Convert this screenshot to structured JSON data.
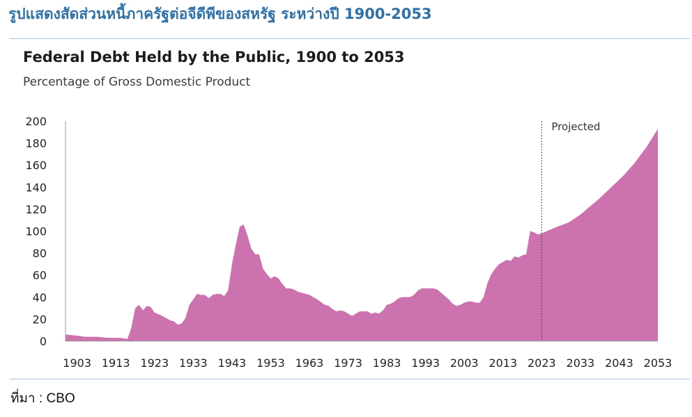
{
  "heading": "รูปแสดงสัดส่วนหนี้ภาครัฐต่อจีดีพีของสหรัฐ ระหว่างปี 1900-2053",
  "source": "ที่มา : CBO",
  "colors": {
    "heading": "#2e70a8",
    "area_fill": "#cc72af",
    "frame_lines": "#a9bfdc"
  },
  "chart_data": {
    "type": "area",
    "title": "Federal Debt Held by the Public, 1900 to 2053",
    "subtitle": "Percentage of Gross Domestic Product",
    "xlabel": "",
    "ylabel": "",
    "xlim": [
      1900,
      2053
    ],
    "ylim": [
      0,
      200
    ],
    "grid": false,
    "legend": "none",
    "x_ticks": [
      1903,
      1913,
      1923,
      1933,
      1943,
      1953,
      1963,
      1973,
      1983,
      1993,
      2003,
      2013,
      2023,
      2033,
      2043,
      2053
    ],
    "y_ticks": [
      0,
      20,
      40,
      60,
      80,
      100,
      120,
      140,
      160,
      180,
      200
    ],
    "annotations": [
      {
        "text": "Projected",
        "x": 2023
      }
    ],
    "series": [
      {
        "values": [
          [
            1900,
            6
          ],
          [
            1903,
            5
          ],
          [
            1905,
            4
          ],
          [
            1908,
            4
          ],
          [
            1911,
            3
          ],
          [
            1914,
            3
          ],
          [
            1916,
            2
          ],
          [
            1917,
            12
          ],
          [
            1918,
            30
          ],
          [
            1919,
            33
          ],
          [
            1920,
            28
          ],
          [
            1921,
            32
          ],
          [
            1922,
            31
          ],
          [
            1923,
            26
          ],
          [
            1925,
            23
          ],
          [
            1927,
            19
          ],
          [
            1928,
            18
          ],
          [
            1929,
            15
          ],
          [
            1930,
            16
          ],
          [
            1931,
            21
          ],
          [
            1932,
            33
          ],
          [
            1933,
            38
          ],
          [
            1934,
            43
          ],
          [
            1935,
            42
          ],
          [
            1936,
            42
          ],
          [
            1937,
            39
          ],
          [
            1938,
            42
          ],
          [
            1939,
            43
          ],
          [
            1940,
            43
          ],
          [
            1941,
            41
          ],
          [
            1942,
            46
          ],
          [
            1943,
            70
          ],
          [
            1944,
            88
          ],
          [
            1945,
            104
          ],
          [
            1946,
            106
          ],
          [
            1947,
            96
          ],
          [
            1948,
            84
          ],
          [
            1949,
            79
          ],
          [
            1950,
            79
          ],
          [
            1951,
            66
          ],
          [
            1952,
            61
          ],
          [
            1953,
            57
          ],
          [
            1954,
            59
          ],
          [
            1955,
            57
          ],
          [
            1956,
            52
          ],
          [
            1957,
            48
          ],
          [
            1958,
            48
          ],
          [
            1959,
            47
          ],
          [
            1960,
            45
          ],
          [
            1962,
            43
          ],
          [
            1963,
            42
          ],
          [
            1965,
            38
          ],
          [
            1967,
            33
          ],
          [
            1968,
            32
          ],
          [
            1969,
            29
          ],
          [
            1970,
            27
          ],
          [
            1971,
            28
          ],
          [
            1972,
            27
          ],
          [
            1973,
            25
          ],
          [
            1974,
            23
          ],
          [
            1975,
            25
          ],
          [
            1976,
            27
          ],
          [
            1977,
            27
          ],
          [
            1978,
            27
          ],
          [
            1979,
            25
          ],
          [
            1980,
            26
          ],
          [
            1981,
            25
          ],
          [
            1982,
            28
          ],
          [
            1983,
            33
          ],
          [
            1984,
            34
          ],
          [
            1985,
            36
          ],
          [
            1986,
            39
          ],
          [
            1987,
            40
          ],
          [
            1988,
            40
          ],
          [
            1989,
            40
          ],
          [
            1990,
            42
          ],
          [
            1991,
            46
          ],
          [
            1992,
            48
          ],
          [
            1993,
            48
          ],
          [
            1994,
            48
          ],
          [
            1995,
            48
          ],
          [
            1996,
            47
          ],
          [
            1997,
            44
          ],
          [
            1998,
            41
          ],
          [
            1999,
            38
          ],
          [
            2000,
            34
          ],
          [
            2001,
            32
          ],
          [
            2002,
            33
          ],
          [
            2003,
            35
          ],
          [
            2004,
            36
          ],
          [
            2005,
            36
          ],
          [
            2006,
            35
          ],
          [
            2007,
            35
          ],
          [
            2008,
            40
          ],
          [
            2009,
            53
          ],
          [
            2010,
            61
          ],
          [
            2011,
            66
          ],
          [
            2012,
            70
          ],
          [
            2013,
            72
          ],
          [
            2014,
            74
          ],
          [
            2015,
            73
          ],
          [
            2016,
            77
          ],
          [
            2017,
            76
          ],
          [
            2018,
            78
          ],
          [
            2019,
            79
          ],
          [
            2020,
            100
          ],
          [
            2021,
            99
          ],
          [
            2022,
            97
          ],
          [
            2023,
            98
          ],
          [
            2025,
            101
          ],
          [
            2027,
            104
          ],
          [
            2030,
            108
          ],
          [
            2033,
            115
          ],
          [
            2035,
            121
          ],
          [
            2038,
            130
          ],
          [
            2041,
            140
          ],
          [
            2044,
            150
          ],
          [
            2047,
            162
          ],
          [
            2050,
            176
          ],
          [
            2053,
            193
          ]
        ]
      }
    ]
  }
}
